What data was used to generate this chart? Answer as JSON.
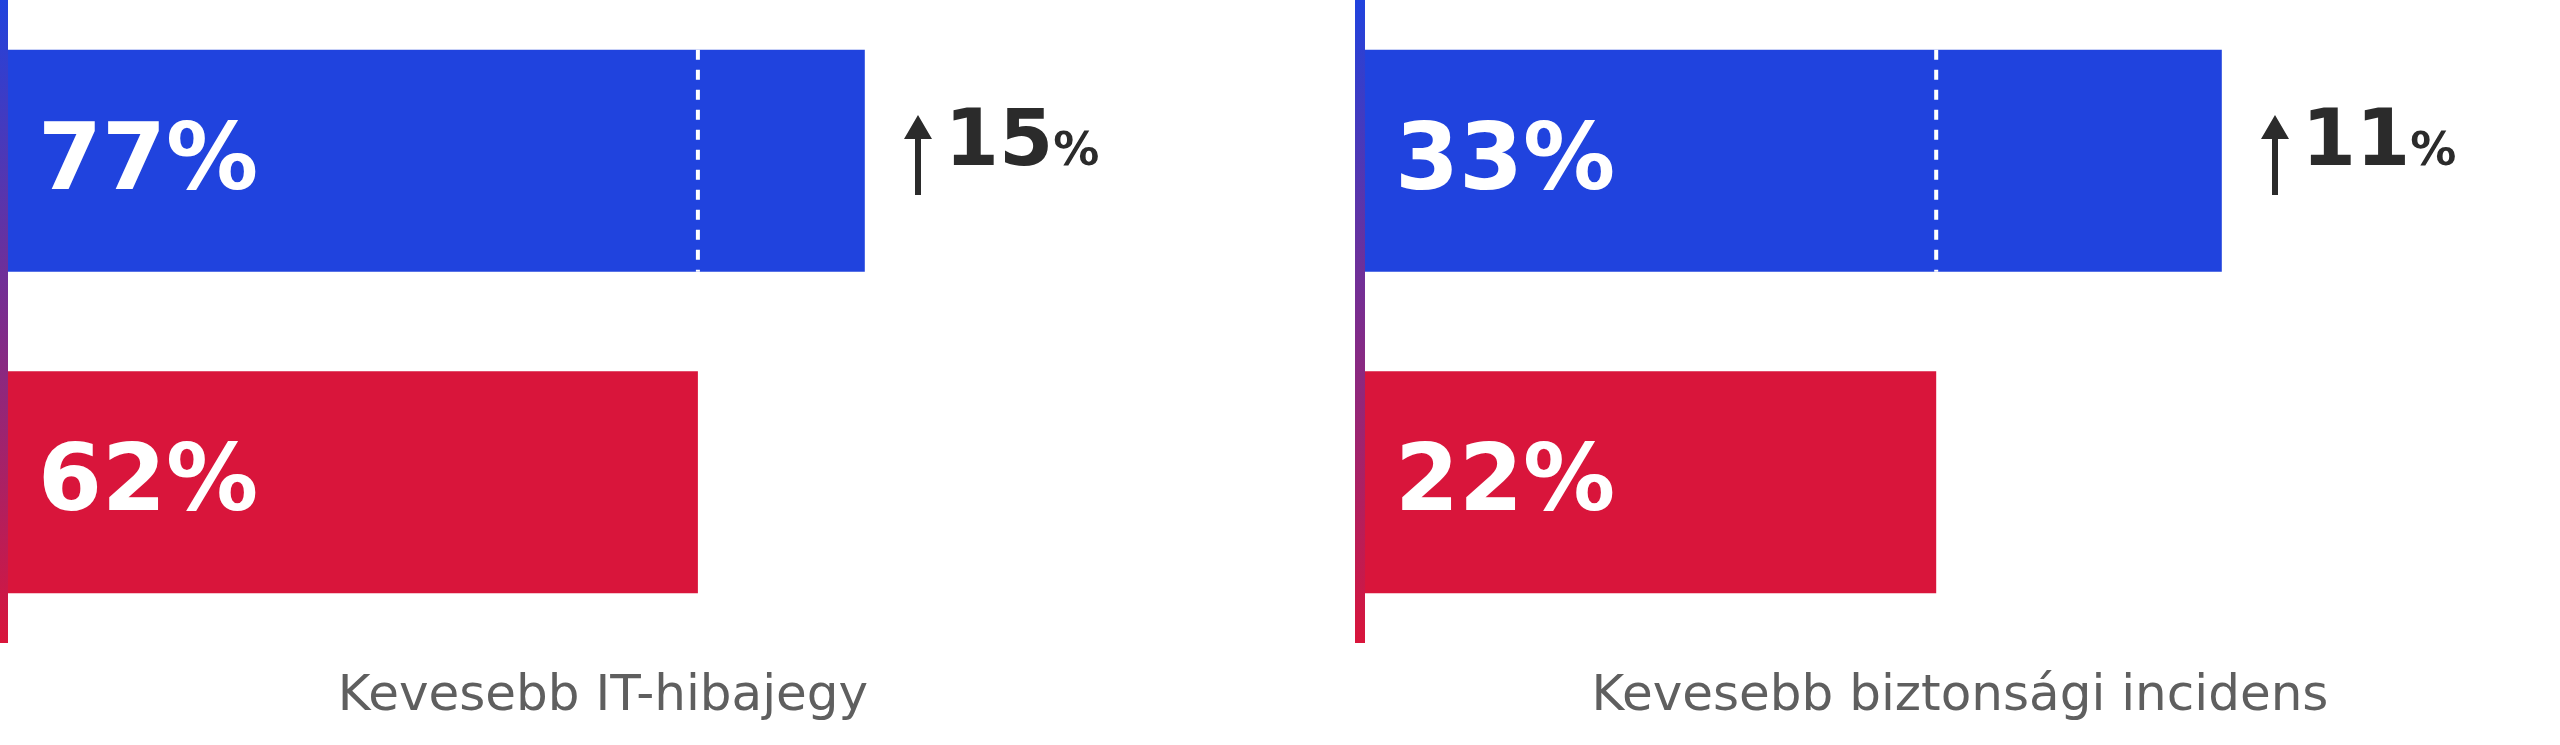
{
  "chart_data": [
    {
      "type": "bar",
      "orientation": "horizontal",
      "categories": [
        null,
        null
      ],
      "values": [
        77,
        62
      ],
      "colors": [
        "#2043de",
        "#d9153b"
      ],
      "value_labels": [
        "77%",
        "62%"
      ],
      "tick_labels": false,
      "legend": false,
      "xlabel": "Kevesebb IT-hibajegy",
      "ref_lines": [
        {
          "axis": "x",
          "value": 62,
          "color": "#ffffff",
          "line_style": "dashed"
        }
      ],
      "annotations": [
        {
          "text": "15%",
          "x": 77
        }
      ]
    },
    {
      "type": "bar",
      "orientation": "horizontal",
      "categories": [
        null,
        null
      ],
      "values": [
        33,
        22
      ],
      "colors": [
        "#2043de",
        "#d9153b"
      ],
      "value_labels": [
        "33%",
        "22%"
      ],
      "tick_labels": false,
      "legend": false,
      "xlabel": "Kevesebb biztonsági incidens",
      "ref_lines": [
        {
          "axis": "x",
          "value": 22,
          "color": "#ffffff",
          "line_style": "dashed"
        }
      ],
      "annotations": [
        {
          "text": "11%",
          "x": 33
        }
      ]
    }
  ]
}
